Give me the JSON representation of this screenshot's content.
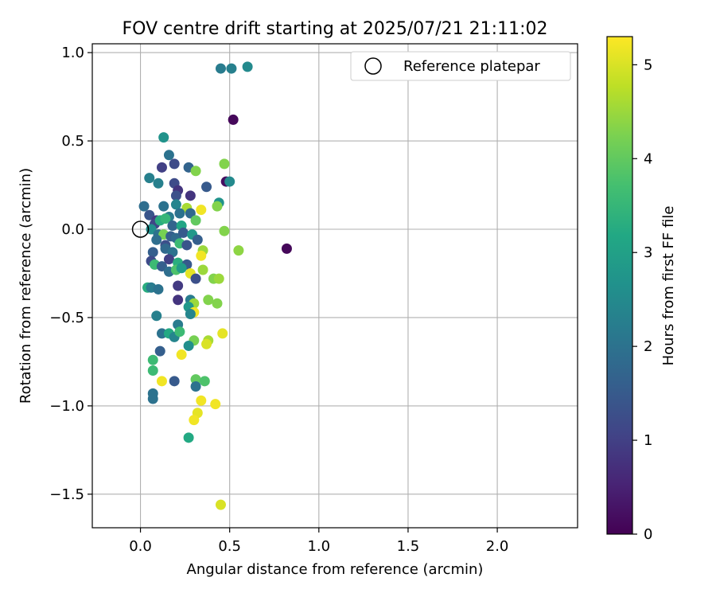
{
  "chart_data": {
    "type": "scatter",
    "title": "FOV centre drift starting at 2025/07/21 21:11:02",
    "xlabel": "Angular distance from reference (arcmin)",
    "ylabel": "Rotation from reference (arcmin)",
    "xlim": [
      -0.27,
      2.45
    ],
    "ylim": [
      -1.69,
      1.05
    ],
    "xticks": [
      0.0,
      0.5,
      1.0,
      1.5,
      2.0
    ],
    "xtick_labels": [
      "0.0",
      "0.5",
      "1.0",
      "1.5",
      "2.0"
    ],
    "yticks": [
      -1.5,
      -1.0,
      -0.5,
      0.0,
      0.5,
      1.0
    ],
    "ytick_labels": [
      "−1.5",
      "−1.0",
      "−0.5",
      "0.0",
      "0.5",
      "1.0"
    ],
    "grid": true,
    "legend": {
      "position": "top-right",
      "label": "Reference platepar"
    },
    "reference_point": {
      "x": 0.0,
      "y": 0.0
    },
    "colorbar": {
      "label": "Hours from first FF file",
      "colormap": "viridis",
      "min": 0,
      "max": 5.3,
      "ticks": [
        0,
        1,
        2,
        3,
        4,
        5
      ],
      "tick_labels": [
        "0",
        "1",
        "2",
        "3",
        "4",
        "5"
      ]
    },
    "points": [
      {
        "x": 0.45,
        "y": 0.91,
        "c": 2.2
      },
      {
        "x": 0.51,
        "y": 0.91,
        "c": 2.3
      },
      {
        "x": 0.6,
        "y": 0.92,
        "c": 2.5
      },
      {
        "x": 0.52,
        "y": 0.62,
        "c": 0.1
      },
      {
        "x": 0.82,
        "y": -0.11,
        "c": 0.1
      },
      {
        "x": 0.13,
        "y": 0.52,
        "c": 2.7
      },
      {
        "x": 0.16,
        "y": 0.42,
        "c": 2.0
      },
      {
        "x": 0.12,
        "y": 0.35,
        "c": 1.0
      },
      {
        "x": 0.19,
        "y": 0.37,
        "c": 1.2
      },
      {
        "x": 0.27,
        "y": 0.35,
        "c": 1.7
      },
      {
        "x": 0.31,
        "y": 0.33,
        "c": 4.3
      },
      {
        "x": 0.47,
        "y": 0.37,
        "c": 4.3
      },
      {
        "x": 0.05,
        "y": 0.29,
        "c": 2.3
      },
      {
        "x": 0.1,
        "y": 0.26,
        "c": 2.3
      },
      {
        "x": 0.19,
        "y": 0.26,
        "c": 1.2
      },
      {
        "x": 0.37,
        "y": 0.24,
        "c": 1.5
      },
      {
        "x": 0.48,
        "y": 0.27,
        "c": 0.2
      },
      {
        "x": 0.5,
        "y": 0.27,
        "c": 2.5
      },
      {
        "x": 0.21,
        "y": 0.22,
        "c": 0.8
      },
      {
        "x": 0.2,
        "y": 0.19,
        "c": 1.3
      },
      {
        "x": 0.28,
        "y": 0.19,
        "c": 0.8
      },
      {
        "x": 0.44,
        "y": 0.15,
        "c": 2.7
      },
      {
        "x": 0.43,
        "y": 0.13,
        "c": 4.3
      },
      {
        "x": 0.02,
        "y": 0.13,
        "c": 1.9
      },
      {
        "x": 0.13,
        "y": 0.13,
        "c": 2.0
      },
      {
        "x": 0.2,
        "y": 0.14,
        "c": 2.4
      },
      {
        "x": 0.26,
        "y": 0.12,
        "c": 4.6
      },
      {
        "x": 0.34,
        "y": 0.11,
        "c": 5.2
      },
      {
        "x": 0.05,
        "y": 0.08,
        "c": 1.4
      },
      {
        "x": 0.09,
        "y": 0.05,
        "c": 0.9
      },
      {
        "x": 0.16,
        "y": 0.07,
        "c": 2.2
      },
      {
        "x": 0.22,
        "y": 0.09,
        "c": 2.0
      },
      {
        "x": 0.28,
        "y": 0.09,
        "c": 1.8
      },
      {
        "x": 0.31,
        "y": 0.05,
        "c": 4.0
      },
      {
        "x": 0.08,
        "y": 0.03,
        "c": 1.1
      },
      {
        "x": 0.11,
        "y": 0.05,
        "c": 3.3
      },
      {
        "x": 0.14,
        "y": 0.06,
        "c": 3.5
      },
      {
        "x": 0.18,
        "y": 0.02,
        "c": 1.7
      },
      {
        "x": 0.23,
        "y": 0.02,
        "c": 3.1
      },
      {
        "x": 0.06,
        "y": 0.0,
        "c": 2.6
      },
      {
        "x": 0.1,
        "y": -0.03,
        "c": 2.0
      },
      {
        "x": 0.13,
        "y": -0.03,
        "c": 4.2
      },
      {
        "x": 0.17,
        "y": -0.04,
        "c": 1.6
      },
      {
        "x": 0.2,
        "y": -0.05,
        "c": 1.8
      },
      {
        "x": 0.24,
        "y": -0.02,
        "c": 1.5
      },
      {
        "x": 0.29,
        "y": -0.03,
        "c": 2.8
      },
      {
        "x": 0.32,
        "y": -0.06,
        "c": 1.6
      },
      {
        "x": 0.47,
        "y": -0.01,
        "c": 4.3
      },
      {
        "x": 0.09,
        "y": -0.06,
        "c": 1.9
      },
      {
        "x": 0.14,
        "y": -0.09,
        "c": 1.3
      },
      {
        "x": 0.22,
        "y": -0.08,
        "c": 3.6
      },
      {
        "x": 0.26,
        "y": -0.09,
        "c": 1.4
      },
      {
        "x": 0.35,
        "y": -0.12,
        "c": 4.5
      },
      {
        "x": 0.34,
        "y": -0.15,
        "c": 5.2
      },
      {
        "x": 0.55,
        "y": -0.12,
        "c": 4.4
      },
      {
        "x": 0.07,
        "y": -0.13,
        "c": 1.6
      },
      {
        "x": 0.14,
        "y": -0.11,
        "c": 1.8
      },
      {
        "x": 0.18,
        "y": -0.13,
        "c": 2.0
      },
      {
        "x": 0.06,
        "y": -0.18,
        "c": 1.2
      },
      {
        "x": 0.08,
        "y": -0.2,
        "c": 3.6
      },
      {
        "x": 0.12,
        "y": -0.21,
        "c": 1.6
      },
      {
        "x": 0.16,
        "y": -0.17,
        "c": 1.0
      },
      {
        "x": 0.21,
        "y": -0.19,
        "c": 3.3
      },
      {
        "x": 0.26,
        "y": -0.2,
        "c": 1.5
      },
      {
        "x": 0.16,
        "y": -0.24,
        "c": 1.9
      },
      {
        "x": 0.2,
        "y": -0.23,
        "c": 3.8
      },
      {
        "x": 0.23,
        "y": -0.22,
        "c": 2.9
      },
      {
        "x": 0.28,
        "y": -0.25,
        "c": 5.1
      },
      {
        "x": 0.31,
        "y": -0.28,
        "c": 1.3
      },
      {
        "x": 0.35,
        "y": -0.23,
        "c": 4.5
      },
      {
        "x": 0.41,
        "y": -0.28,
        "c": 4.3
      },
      {
        "x": 0.44,
        "y": -0.28,
        "c": 4.5
      },
      {
        "x": 0.04,
        "y": -0.33,
        "c": 3.3
      },
      {
        "x": 0.06,
        "y": -0.33,
        "c": 2.2
      },
      {
        "x": 0.1,
        "y": -0.34,
        "c": 2.0
      },
      {
        "x": 0.21,
        "y": -0.32,
        "c": 0.9
      },
      {
        "x": 0.21,
        "y": -0.4,
        "c": 0.8
      },
      {
        "x": 0.28,
        "y": -0.4,
        "c": 2.2
      },
      {
        "x": 0.3,
        "y": -0.42,
        "c": 4.5
      },
      {
        "x": 0.38,
        "y": -0.4,
        "c": 4.3
      },
      {
        "x": 0.43,
        "y": -0.42,
        "c": 4.3
      },
      {
        "x": 0.27,
        "y": -0.44,
        "c": 2.8
      },
      {
        "x": 0.3,
        "y": -0.47,
        "c": 5.2
      },
      {
        "x": 0.28,
        "y": -0.48,
        "c": 2.4
      },
      {
        "x": 0.09,
        "y": -0.49,
        "c": 2.3
      },
      {
        "x": 0.21,
        "y": -0.54,
        "c": 2.2
      },
      {
        "x": 0.12,
        "y": -0.59,
        "c": 2.0
      },
      {
        "x": 0.16,
        "y": -0.59,
        "c": 3.2
      },
      {
        "x": 0.19,
        "y": -0.61,
        "c": 2.4
      },
      {
        "x": 0.22,
        "y": -0.58,
        "c": 3.6
      },
      {
        "x": 0.46,
        "y": -0.59,
        "c": 5.1
      },
      {
        "x": 0.3,
        "y": -0.63,
        "c": 4.2
      },
      {
        "x": 0.27,
        "y": -0.66,
        "c": 2.6
      },
      {
        "x": 0.38,
        "y": -0.63,
        "c": 4.6
      },
      {
        "x": 0.37,
        "y": -0.65,
        "c": 5.0
      },
      {
        "x": 0.11,
        "y": -0.69,
        "c": 1.6
      },
      {
        "x": 0.23,
        "y": -0.71,
        "c": 5.2
      },
      {
        "x": 0.07,
        "y": -0.74,
        "c": 3.6
      },
      {
        "x": 0.07,
        "y": -0.8,
        "c": 3.6
      },
      {
        "x": 0.12,
        "y": -0.86,
        "c": 5.2
      },
      {
        "x": 0.19,
        "y": -0.86,
        "c": 1.5
      },
      {
        "x": 0.31,
        "y": -0.85,
        "c": 4.0
      },
      {
        "x": 0.36,
        "y": -0.86,
        "c": 3.8
      },
      {
        "x": 0.31,
        "y": -0.89,
        "c": 2.0
      },
      {
        "x": 0.07,
        "y": -0.93,
        "c": 2.0
      },
      {
        "x": 0.07,
        "y": -0.96,
        "c": 2.0
      },
      {
        "x": 0.34,
        "y": -0.97,
        "c": 5.2
      },
      {
        "x": 0.42,
        "y": -0.99,
        "c": 5.2
      },
      {
        "x": 0.32,
        "y": -1.04,
        "c": 5.1
      },
      {
        "x": 0.3,
        "y": -1.08,
        "c": 5.2
      },
      {
        "x": 0.27,
        "y": -1.18,
        "c": 3.2
      },
      {
        "x": 0.45,
        "y": -1.56,
        "c": 5.0
      }
    ]
  }
}
